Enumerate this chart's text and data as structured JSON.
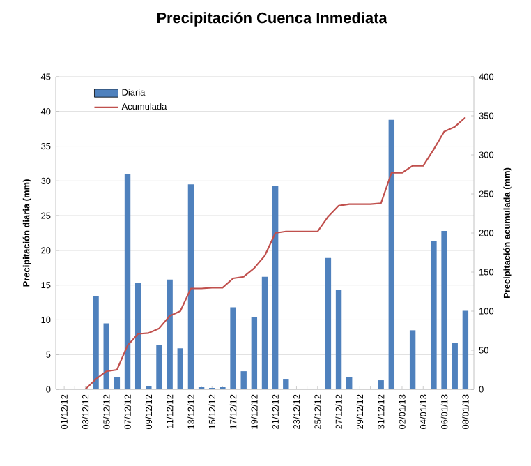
{
  "chart_data": {
    "type": "bar",
    "title": "Precipitación Cuenca Inmediata",
    "ylabel": "Precipitación diaria (mm)",
    "y2label": "Precipitación acumulada (mm)",
    "categories": [
      "01/12/12",
      null,
      "03/12/12",
      null,
      "05/12/12",
      null,
      "07/12/12",
      null,
      "09/12/12",
      null,
      "11/12/12",
      null,
      "13/12/12",
      null,
      "15/12/12",
      null,
      "17/12/12",
      null,
      "19/12/12",
      null,
      "21/12/12",
      null,
      "23/12/12",
      null,
      "25/12/12",
      null,
      "27/12/12",
      null,
      "29/12/12",
      null,
      "31/12/12",
      null,
      "02/01/13",
      null,
      "04/01/13",
      null,
      "06/01/13",
      null,
      "08/01/13"
    ],
    "series": [
      {
        "name": "Diaria",
        "color": "#4f81bd",
        "values": [
          0,
          0,
          0,
          13.4,
          9.5,
          1.8,
          31,
          15.3,
          0.4,
          6.4,
          15.8,
          5.9,
          29.5,
          0.3,
          0.2,
          0.3,
          11.8,
          2.6,
          10.4,
          16.2,
          29.3,
          1.4,
          0.1,
          0,
          0,
          18.9,
          14.3,
          1.8,
          0,
          0.1,
          1.3,
          38.8,
          0.1,
          8.5,
          0.1,
          21.3,
          22.8,
          6.7,
          11.3
        ]
      },
      {
        "name": "Acumulada",
        "type": "line",
        "axis": "y2",
        "color": "#c0504d",
        "values": [
          0,
          0,
          0,
          13,
          23,
          25,
          56,
          71,
          72,
          78,
          94,
          100,
          129,
          129,
          130,
          130,
          142,
          144,
          155,
          171,
          200,
          202,
          202,
          202,
          202,
          221,
          235,
          237,
          237,
          237,
          238,
          277,
          277,
          286,
          286,
          307,
          330,
          336,
          348
        ]
      }
    ],
    "ylim": [
      0,
      45
    ],
    "yticks": [
      0,
      5,
      10,
      15,
      20,
      25,
      30,
      35,
      40,
      45
    ],
    "y2lim": [
      0,
      400
    ],
    "y2ticks": [
      0,
      50,
      100,
      150,
      200,
      250,
      300,
      350,
      400
    ],
    "grid": "y",
    "legend": "top left"
  }
}
